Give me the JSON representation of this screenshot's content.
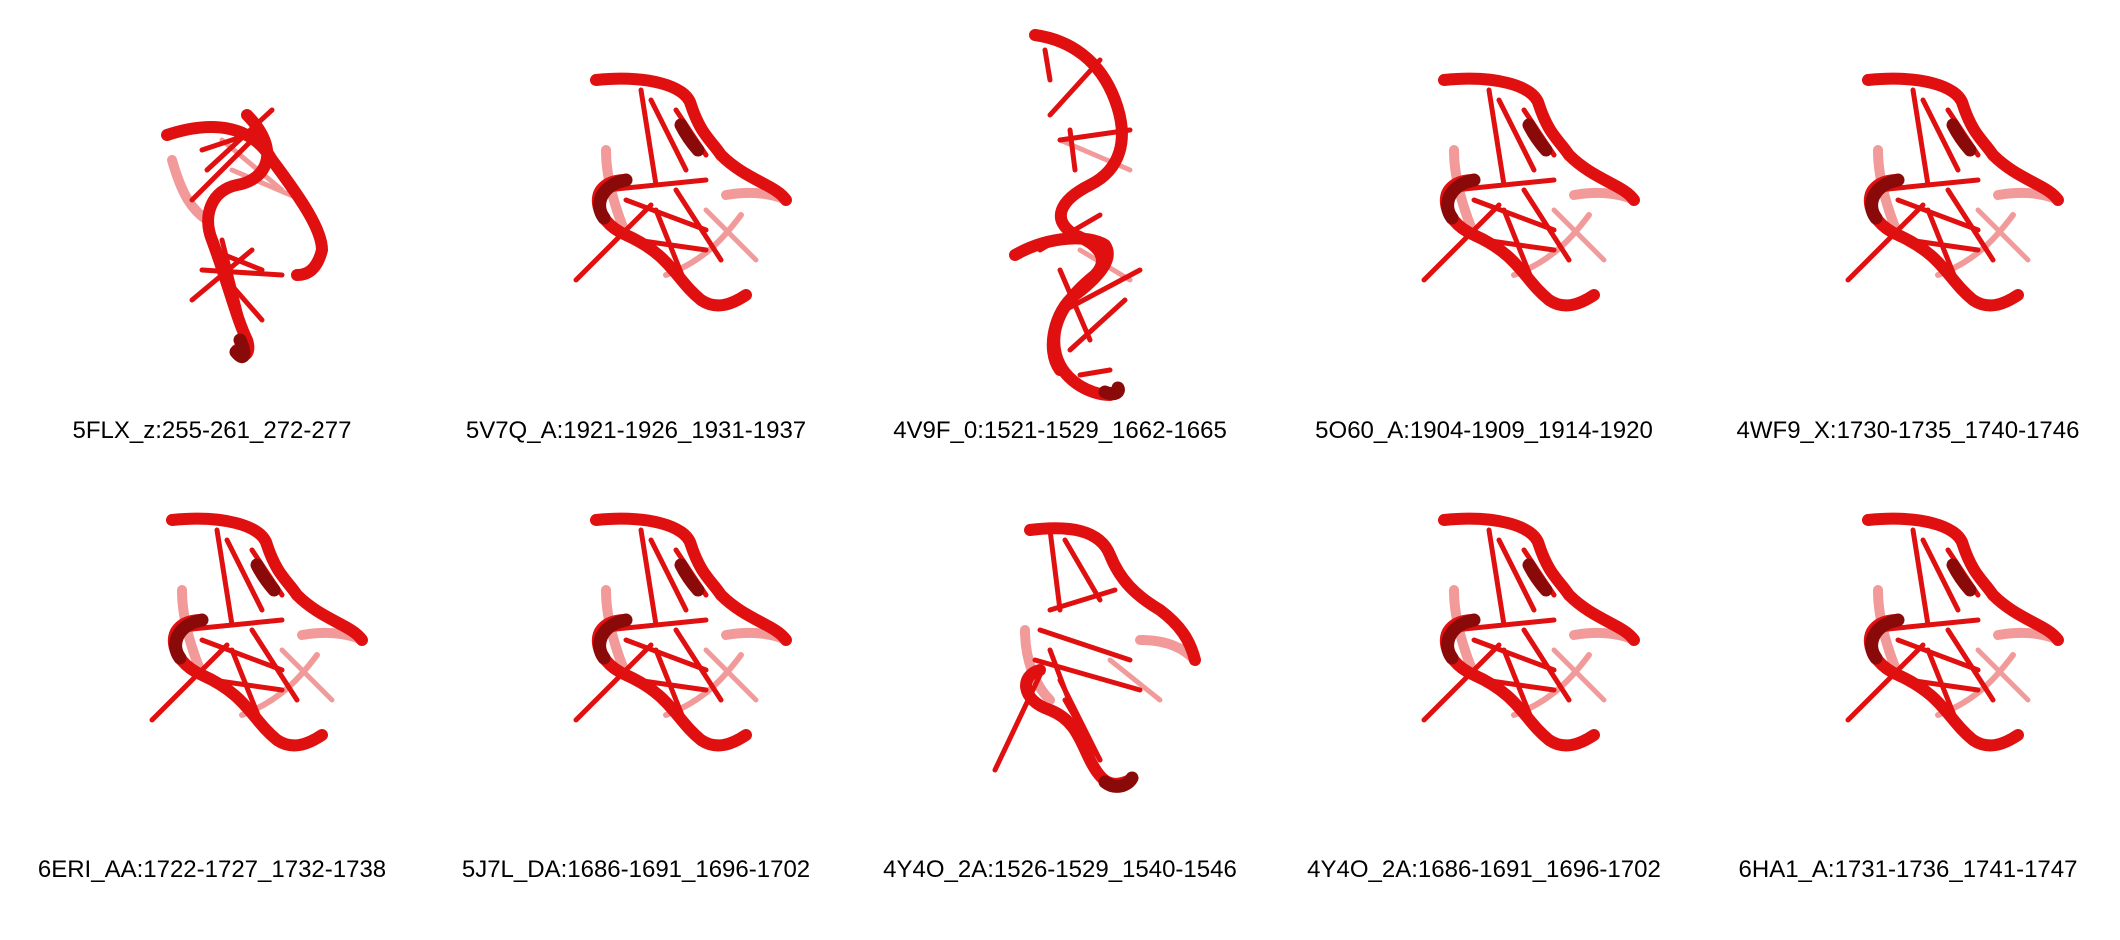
{
  "structures": [
    {
      "label": "5FLX_z:255-261_272-277",
      "shape": "A"
    },
    {
      "label": "5V7Q_A:1921-1926_1931-1937",
      "shape": "B"
    },
    {
      "label": "4V9F_0:1521-1529_1662-1665",
      "shape": "C"
    },
    {
      "label": "5O60_A:1904-1909_1914-1920",
      "shape": "B"
    },
    {
      "label": "4WF9_X:1730-1735_1740-1746",
      "shape": "B"
    },
    {
      "label": "6ERI_AA:1722-1727_1732-1738",
      "shape": "B"
    },
    {
      "label": "5J7L_DA:1686-1691_1696-1702",
      "shape": "B"
    },
    {
      "label": "4Y4O_2A:1526-1529_1540-1546",
      "shape": "D"
    },
    {
      "label": "4Y4O_2A:1686-1691_1696-1702",
      "shape": "B"
    },
    {
      "label": "6HA1_A:1731-1736_1741-1747",
      "shape": "B"
    }
  ],
  "colors": {
    "cartoon": "#e01010",
    "cartoon_dark": "#8a0a0a",
    "cartoon_light": "#f29a9a",
    "text": "#000000"
  }
}
